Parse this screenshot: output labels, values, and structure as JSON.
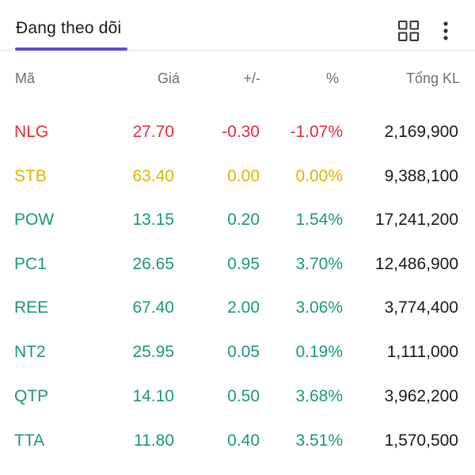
{
  "header": {
    "tab_label": "Đang theo dõi",
    "grid_icon": "grid-view-icon",
    "more_icon": "more-vertical-icon",
    "accent_color": "#5a50c8"
  },
  "columns": {
    "symbol": "Mã",
    "price": "Giá",
    "change": "+/-",
    "percent": "%",
    "volume": "Tổng KL"
  },
  "colors": {
    "down": "#e8283a",
    "flat": "#e0b400",
    "up": "#1a9a6c"
  },
  "rows": [
    {
      "symbol": "NLG",
      "price": "27.70",
      "change": "-0.30",
      "percent": "-1.07%",
      "volume": "2,169,900",
      "trend": "down"
    },
    {
      "symbol": "STB",
      "price": "63.40",
      "change": "0.00",
      "percent": "0.00%",
      "volume": "9,388,100",
      "trend": "flat"
    },
    {
      "symbol": "POW",
      "price": "13.15",
      "change": "0.20",
      "percent": "1.54%",
      "volume": "17,241,200",
      "trend": "up"
    },
    {
      "symbol": "PC1",
      "price": "26.65",
      "change": "0.95",
      "percent": "3.70%",
      "volume": "12,486,900",
      "trend": "up"
    },
    {
      "symbol": "REE",
      "price": "67.40",
      "change": "2.00",
      "percent": "3.06%",
      "volume": "3,774,400",
      "trend": "up"
    },
    {
      "symbol": "NT2",
      "price": "25.95",
      "change": "0.05",
      "percent": "0.19%",
      "volume": "1,111,000",
      "trend": "up"
    },
    {
      "symbol": "QTP",
      "price": "14.10",
      "change": "0.50",
      "percent": "3.68%",
      "volume": "3,962,200",
      "trend": "up"
    },
    {
      "symbol": "TTA",
      "price": "11.80",
      "change": "0.40",
      "percent": "3.51%",
      "volume": "1,570,500",
      "trend": "up"
    }
  ]
}
